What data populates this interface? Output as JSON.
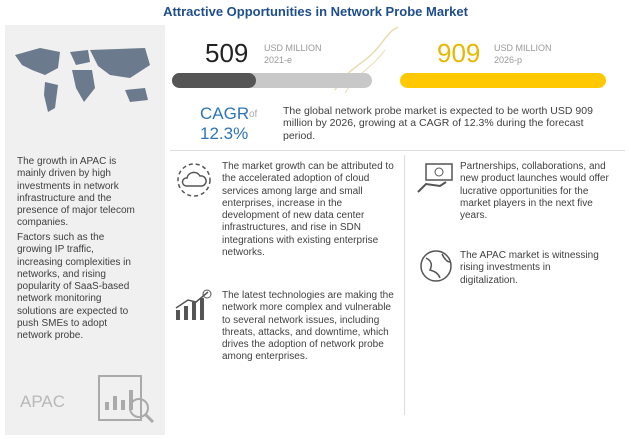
{
  "header": {
    "title": "Attractive Opportunities in Network Probe Market"
  },
  "sidebar": {
    "paragraphs": [
      "The growth in APAC is mainly driven by high investments in network infrastructure and the presence of major telecom companies.",
      "Factors such as the growing IP traffic, increasing complexities in networks, and rising popularity of SaaS-based network monitoring solutions are expected to push SMEs to adopt network probe."
    ],
    "region": "APAC"
  },
  "metrics": [
    {
      "value": "509",
      "unit": "USD MILLION",
      "year": "2021-e"
    },
    {
      "value": "909",
      "unit": "USD MILLION",
      "year": "2026-p"
    }
  ],
  "cagr": {
    "label": "CAGR",
    "connector": "of",
    "value": "12.3%"
  },
  "summary": "The global network probe market is expected to be worth USD 909 million by 2026, growing at a CAGR of 12.3% during the forecast period.",
  "insights": [
    "The market growth can be attributed to the accelerated adoption of cloud services among large and small enterprises, increase in the development of new data center infrastructures, and rise in SDN integrations with existing enterprise networks.",
    "The latest technologies are making the network more complex and vulnerable to several network issues, including threats, attacks, and downtime, which drives the adoption of network probe among enterprises.",
    "Partnerships, collaborations, and new product launches would offer lucrative opportunities for the market players in the next five years.",
    "The APAC market is witnessing rising investments in digitalization."
  ]
}
